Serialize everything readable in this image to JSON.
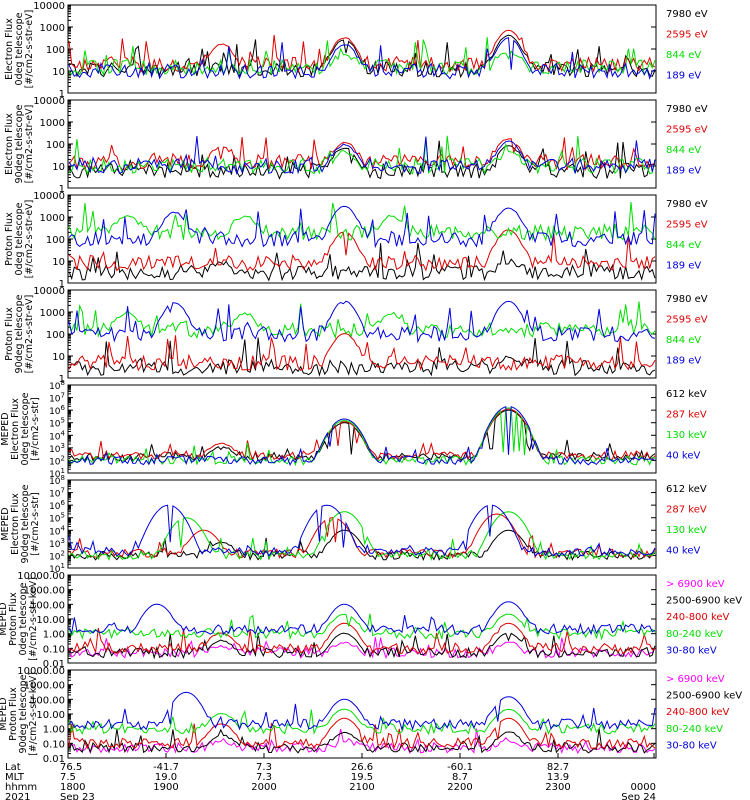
{
  "chart_data": [
    {
      "type": "line",
      "ylabel": [
        "Electron Flux",
        "0deg telescope",
        "[#/cm2-s-str-eV]"
      ],
      "yscale": "log",
      "ylim": [
        1,
        10000
      ],
      "yticks": [
        "1",
        "10",
        "100",
        "1000",
        "10000"
      ],
      "series": [
        {
          "name": "7980 eV",
          "color": "#000000",
          "base": 12,
          "peaks": [
            [
              0.47,
              250
            ],
            [
              0.75,
              400
            ]
          ]
        },
        {
          "name": "2595 eV",
          "color": "#dd0000",
          "base": 20,
          "peaks": [
            [
              0.26,
              150
            ],
            [
              0.47,
              300
            ],
            [
              0.75,
              700
            ]
          ]
        },
        {
          "name": "844 eV",
          "color": "#00dd00",
          "base": 15,
          "peaks": [
            [
              0.47,
              40
            ],
            [
              0.75,
              60
            ]
          ]
        },
        {
          "name": "189 eV",
          "color": "#0000dd",
          "base": 10,
          "peaks": [
            [
              0.47,
              150
            ],
            [
              0.75,
              300
            ]
          ]
        }
      ]
    },
    {
      "type": "line",
      "ylabel": [
        "Electron Flux",
        "90deg telescope",
        "[#/cm2-s-str-eV]"
      ],
      "yscale": "log",
      "ylim": [
        1,
        10000
      ],
      "yticks": [
        "1",
        "10",
        "100",
        "1000",
        "10000"
      ],
      "series": [
        {
          "name": "7980 eV",
          "color": "#000000",
          "base": 6,
          "peaks": [
            [
              0.47,
              60
            ],
            [
              0.75,
              80
            ]
          ]
        },
        {
          "name": "2595 eV",
          "color": "#dd0000",
          "base": 15,
          "peaks": [
            [
              0.26,
              60
            ],
            [
              0.47,
              100
            ],
            [
              0.75,
              150
            ]
          ]
        },
        {
          "name": "844 eV",
          "color": "#00dd00",
          "base": 10,
          "peaks": [
            [
              0.47,
              30
            ],
            [
              0.75,
              40
            ]
          ]
        },
        {
          "name": "189 eV",
          "color": "#0000dd",
          "base": 10,
          "peaks": [
            [
              0.47,
              80
            ],
            [
              0.75,
              120
            ]
          ]
        }
      ]
    },
    {
      "type": "line",
      "ylabel": [
        "Proton Flux",
        "0deg telescope",
        "[#/cm2-s-str-eV]"
      ],
      "yscale": "log",
      "ylim": [
        1,
        10000
      ],
      "yticks": [
        "1",
        "10",
        "100",
        "1000",
        "10000"
      ],
      "series": [
        {
          "name": "7980 eV",
          "color": "#000000",
          "base": 3,
          "peaks": [
            [
              0.26,
              5
            ],
            [
              0.75,
              6
            ]
          ]
        },
        {
          "name": "2595 eV",
          "color": "#dd0000",
          "base": 8,
          "peaks": [
            [
              0.47,
              200
            ],
            [
              0.75,
              250
            ]
          ]
        },
        {
          "name": "844 eV",
          "color": "#00dd00",
          "base": 200,
          "peaks": [
            [
              0.1,
              1000
            ],
            [
              0.3,
              900
            ],
            [
              0.55,
              800
            ]
          ]
        },
        {
          "name": "189 eV",
          "color": "#0000dd",
          "base": 100,
          "peaks": [
            [
              0.18,
              1500
            ],
            [
              0.47,
              3000
            ],
            [
              0.75,
              2500
            ]
          ]
        }
      ]
    },
    {
      "type": "line",
      "ylabel": [
        "Proton Flux",
        "90deg telescope",
        "[#/cm2-s-str-eV]"
      ],
      "yscale": "log",
      "ylim": [
        1,
        10000
      ],
      "yticks": [
        "1",
        "10",
        "100",
        "1000",
        "10000"
      ],
      "series": [
        {
          "name": "7980 eV",
          "color": "#000000",
          "base": 3,
          "peaks": [
            [
              0.75,
              6
            ]
          ]
        },
        {
          "name": "2595 eV",
          "color": "#dd0000",
          "base": 5,
          "peaks": [
            [
              0.47,
              100
            ]
          ]
        },
        {
          "name": "844 eV",
          "color": "#00dd00",
          "base": 150,
          "peaks": [
            [
              0.1,
              800
            ],
            [
              0.3,
              700
            ],
            [
              0.55,
              700
            ]
          ]
        },
        {
          "name": "189 eV",
          "color": "#0000dd",
          "base": 100,
          "peaks": [
            [
              0.18,
              2500
            ],
            [
              0.47,
              3000
            ],
            [
              0.75,
              3000
            ]
          ]
        }
      ]
    },
    {
      "type": "line",
      "ylabel": [
        "MEPED",
        "Electron Flux",
        "0deg telescope",
        "[#/cm2-s-str]"
      ],
      "yscale": "log",
      "ylim": [
        10,
        100000000
      ],
      "yticks": [
        "10^1",
        "10^2",
        "10^3",
        "10^4",
        "10^5",
        "10^6",
        "10^7",
        "10^8"
      ],
      "series": [
        {
          "name": "612 keV",
          "color": "#000000",
          "base": 200,
          "peaks": [
            [
              0.26,
              1000
            ],
            [
              0.47,
              100000
            ],
            [
              0.75,
              1000000
            ]
          ]
        },
        {
          "name": "287 keV",
          "color": "#dd0000",
          "base": 250,
          "peaks": [
            [
              0.26,
              2000
            ],
            [
              0.47,
              120000
            ],
            [
              0.75,
              1200000
            ]
          ]
        },
        {
          "name": "130 keV",
          "color": "#00dd00",
          "base": 100,
          "peaks": [
            [
              0.47,
              150000
            ],
            [
              0.75,
              1500000
            ]
          ]
        },
        {
          "name": "40 keV",
          "color": "#0000dd",
          "base": 100,
          "peaks": [
            [
              0.47,
              200000
            ],
            [
              0.75,
              2000000
            ]
          ]
        }
      ]
    },
    {
      "type": "line",
      "ylabel": [
        "MEPED",
        "Electron Flux",
        "90deg telescope",
        "[#/cm2-s-str]"
      ],
      "yscale": "log",
      "ylim": [
        10,
        100000000
      ],
      "yticks": [
        "10^1",
        "10^2",
        "10^3",
        "10^4",
        "10^5",
        "10^6",
        "10^7",
        "10^8"
      ],
      "series": [
        {
          "name": "612 keV",
          "color": "#000000",
          "base": 100,
          "peaks": [
            [
              0.26,
              1000
            ],
            [
              0.47,
              10000
            ],
            [
              0.75,
              10000
            ]
          ]
        },
        {
          "name": "287 keV",
          "color": "#dd0000",
          "base": 150,
          "peaks": [
            [
              0.23,
              10000
            ],
            [
              0.45,
              100000
            ],
            [
              0.73,
              200000
            ]
          ]
        },
        {
          "name": "130 keV",
          "color": "#00dd00",
          "base": 100,
          "peaks": [
            [
              0.2,
              100000
            ],
            [
              0.47,
              300000
            ],
            [
              0.75,
              300000
            ]
          ]
        },
        {
          "name": "40 keV",
          "color": "#0000dd",
          "base": 200,
          "peaks": [
            [
              0.17,
              1000000
            ],
            [
              0.44,
              1000000
            ],
            [
              0.72,
              1000000
            ]
          ]
        }
      ]
    },
    {
      "type": "line",
      "ylabel": [
        "MEPED",
        "Proton Flux",
        "0deg telescope",
        "[#/cm2-s-str-keV]"
      ],
      "yscale": "log",
      "ylim": [
        0.01,
        10000
      ],
      "yticks": [
        "0.01",
        "0.10",
        "1.00",
        "10.00",
        "100.00",
        "1000.00",
        "10000.00"
      ],
      "series": [
        {
          "name": "> 6900 keV",
          "color": "#ff00ff",
          "base": 0.05,
          "peaks": [
            [
              0.26,
              0.1
            ],
            [
              0.47,
              0.2
            ],
            [
              0.75,
              0.2
            ]
          ]
        },
        {
          "name": "2500-6900 keV",
          "color": "#000000",
          "base": 0.05,
          "peaks": [
            [
              0.26,
              0.3
            ],
            [
              0.47,
              1
            ],
            [
              0.75,
              1
            ]
          ]
        },
        {
          "name": "240-800 keV",
          "color": "#dd0000",
          "base": 0.1,
          "peaks": [
            [
              0.26,
              1
            ],
            [
              0.47,
              5
            ],
            [
              0.75,
              5
            ]
          ]
        },
        {
          "name": "80-240 keV",
          "color": "#00dd00",
          "base": 1,
          "peaks": [
            [
              0.47,
              20
            ],
            [
              0.75,
              20
            ]
          ]
        },
        {
          "name": "30-80 keV",
          "color": "#0000dd",
          "base": 2,
          "peaks": [
            [
              0.15,
              100
            ],
            [
              0.47,
              100
            ],
            [
              0.75,
              150
            ]
          ]
        }
      ]
    },
    {
      "type": "line",
      "ylabel": [
        "MEPED",
        "Proton Flux",
        "90deg telescope",
        "[#/cm2-s-str-keV]"
      ],
      "yscale": "log",
      "ylim": [
        0.01,
        10000
      ],
      "yticks": [
        "0.01",
        "0.10",
        "1.00",
        "10.00",
        "100.00",
        "1000.00",
        "10000.00"
      ],
      "series": [
        {
          "name": "> 6900 keV",
          "color": "#ff00ff",
          "base": 0.05,
          "peaks": [
            [
              0.26,
              0.1
            ],
            [
              0.47,
              0.1
            ],
            [
              0.75,
              0.1
            ]
          ]
        },
        {
          "name": "2500-6900 keV",
          "color": "#000000",
          "base": 0.05,
          "peaks": [
            [
              0.26,
              0.3
            ],
            [
              0.47,
              0.5
            ],
            [
              0.75,
              0.5
            ]
          ]
        },
        {
          "name": "240-800 keV",
          "color": "#dd0000",
          "base": 0.1,
          "peaks": [
            [
              0.26,
              2
            ],
            [
              0.47,
              5
            ],
            [
              0.75,
              5
            ]
          ]
        },
        {
          "name": "80-240 keV",
          "color": "#00dd00",
          "base": 1,
          "peaks": [
            [
              0.26,
              10
            ],
            [
              0.47,
              20
            ],
            [
              0.75,
              20
            ]
          ]
        },
        {
          "name": "30-80 keV",
          "color": "#0000dd",
          "base": 2,
          "peaks": [
            [
              0.2,
              300
            ],
            [
              0.47,
              100
            ],
            [
              0.75,
              150
            ]
          ]
        }
      ]
    }
  ],
  "xaxis": {
    "row_labels": [
      "Lat",
      "MLT",
      "hhmm",
      "2021"
    ],
    "ticks": [
      {
        "pos": 0.0,
        "lat": "76.5",
        "mlt": "7.5",
        "hhmm": "1800",
        "date": "Sep 23"
      },
      {
        "pos": 0.2,
        "lat": "-41.7",
        "mlt": "19.0",
        "hhmm": "1900",
        "date": ""
      },
      {
        "pos": 0.4,
        "lat": "7.3",
        "mlt": "7.3",
        "hhmm": "2000",
        "date": ""
      },
      {
        "pos": 0.6,
        "lat": "26.6",
        "mlt": "19.5",
        "hhmm": "2100",
        "date": ""
      },
      {
        "pos": 0.8,
        "lat": "-60.1",
        "mlt": "8.7",
        "hhmm": "2200",
        "date": ""
      },
      {
        "pos": 1.0,
        "lat": "82.7",
        "mlt": "13.9",
        "hhmm": "2300",
        "date": ""
      },
      {
        "pos": 1.2,
        "lat": "",
        "mlt": "",
        "hhmm": "0000",
        "date": "Sep 24"
      }
    ]
  }
}
